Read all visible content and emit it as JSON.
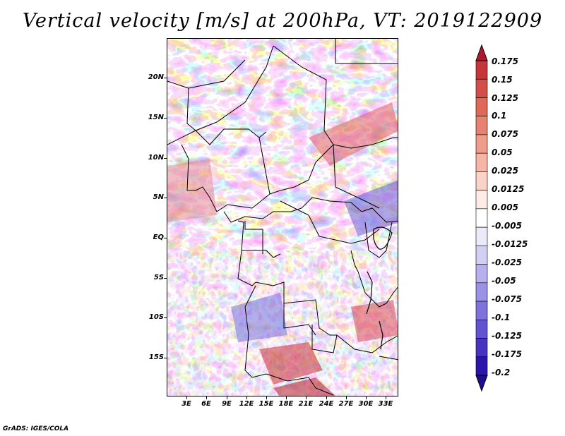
{
  "title": "Vertical velocity [m/s] at 200hPa, VT: 2019122909",
  "credit": "GrADS: IGES/COLA",
  "map": {
    "lat_labels": [
      "20N",
      "15N",
      "10N",
      "5N",
      "EQ",
      "5S",
      "10S",
      "15S"
    ],
    "lon_labels": [
      "3E",
      "6E",
      "9E",
      "12E",
      "15E",
      "18E",
      "21E",
      "24E",
      "27E",
      "30E",
      "33E"
    ]
  },
  "colorbar": {
    "labels": [
      "0.175",
      "0.15",
      "0.125",
      "0.1",
      "0.075",
      "0.05",
      "0.025",
      "0.0125",
      "0.005",
      "-0.005",
      "-0.0125",
      "-0.025",
      "-0.05",
      "-0.075",
      "-0.1",
      "-0.125",
      "-0.175",
      "-0.2"
    ],
    "colors": [
      "#b2182b",
      "#c4363a",
      "#d44e49",
      "#e06858",
      "#e88270",
      "#f09c8a",
      "#f6b6a6",
      "#fbd2c6",
      "#fdece6",
      "#ffffff",
      "#eceaf9",
      "#d2cff4",
      "#b6b1ee",
      "#9a92e6",
      "#7e72dc",
      "#6253cf",
      "#4634bf",
      "#2a16a8",
      "#1f0c90"
    ]
  }
}
